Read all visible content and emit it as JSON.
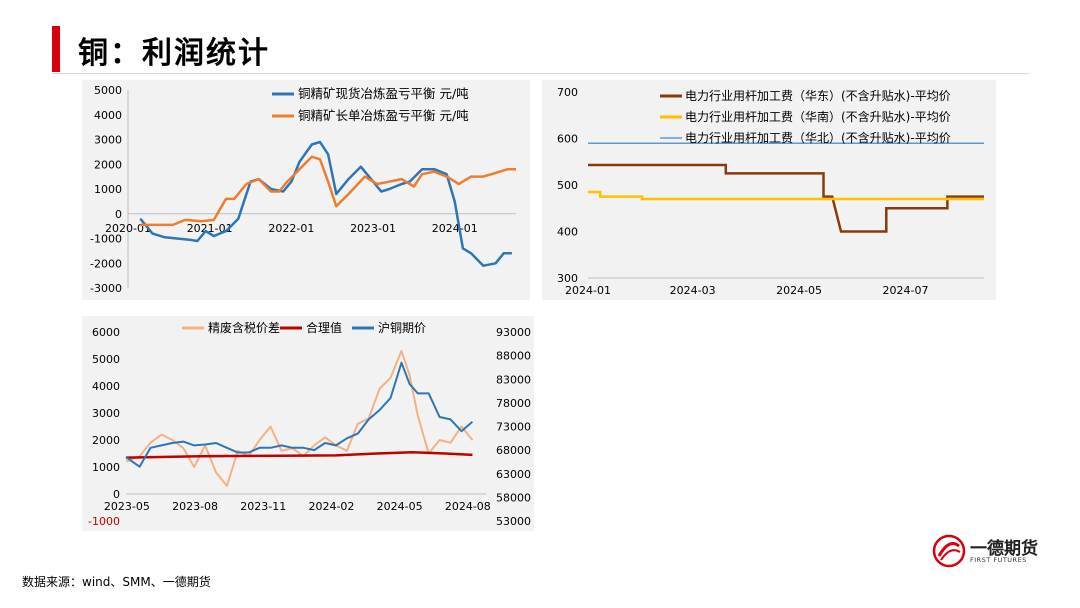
{
  "page": {
    "title": "铜：利润统计",
    "source": "数据来源：wind、SMM、一德期货"
  },
  "logo": {
    "name": "一德期货",
    "sub": "FIRST FUTURES"
  },
  "chart_data": [
    {
      "type": "line",
      "x_ticks": [
        "2020-01",
        "2021-01",
        "2022-01",
        "2023-01",
        "2024-01"
      ],
      "y_ticks": [
        -3000,
        -2000,
        -1000,
        0,
        1000,
        2000,
        3000,
        4000,
        5000
      ],
      "ylim": [
        -3000,
        5000
      ],
      "xlim": [
        2020.0,
        2024.75
      ],
      "series": [
        {
          "name": "铜精矿现货冶炼盈亏平衡 元/吨",
          "color": "#2e75b6",
          "x": [
            2020.15,
            2020.3,
            2020.45,
            2020.6,
            2020.75,
            2020.85,
            2020.95,
            2021.05,
            2021.2,
            2021.35,
            2021.5,
            2021.6,
            2021.75,
            2021.9,
            2022.0,
            2022.1,
            2022.25,
            2022.35,
            2022.45,
            2022.55,
            2022.7,
            2022.85,
            2023.0,
            2023.1,
            2023.2,
            2023.35,
            2023.45,
            2023.6,
            2023.75,
            2023.9,
            2024.0,
            2024.1,
            2024.2,
            2024.35,
            2024.5,
            2024.6,
            2024.7
          ],
          "y": [
            -200,
            -800,
            -950,
            -1000,
            -1050,
            -1100,
            -700,
            -900,
            -700,
            -200,
            1300,
            1400,
            1000,
            900,
            1300,
            2100,
            2800,
            2900,
            2400,
            800,
            1400,
            1900,
            1300,
            900,
            1000,
            1200,
            1300,
            1800,
            1800,
            1600,
            500,
            -1400,
            -1600,
            -2100,
            -2000,
            -1600,
            -1600
          ]
        },
        {
          "name": "铜精矿长单冶炼盈亏平衡 元/吨",
          "color": "#ed7d31",
          "x": [
            2020.15,
            2020.35,
            2020.55,
            2020.7,
            2020.9,
            2021.05,
            2021.2,
            2021.3,
            2021.45,
            2021.6,
            2021.75,
            2021.85,
            2021.95,
            2022.1,
            2022.25,
            2022.35,
            2022.45,
            2022.55,
            2022.7,
            2022.9,
            2023.05,
            2023.2,
            2023.35,
            2023.5,
            2023.6,
            2023.75,
            2023.9,
            2024.05,
            2024.2,
            2024.35,
            2024.5,
            2024.65,
            2024.75
          ],
          "y": [
            -450,
            -450,
            -450,
            -250,
            -300,
            -250,
            600,
            600,
            1200,
            1400,
            900,
            900,
            1300,
            1800,
            2300,
            2200,
            1300,
            300,
            800,
            1500,
            1200,
            1300,
            1400,
            1100,
            1600,
            1700,
            1500,
            1200,
            1500,
            1500,
            1650,
            1800,
            1800
          ]
        }
      ]
    },
    {
      "type": "line",
      "x_ticks": [
        "2024-01",
        "2024-03",
        "2024-05",
        "2024-07"
      ],
      "y_ticks": [
        300,
        400,
        500,
        600,
        700
      ],
      "ylim": [
        300,
        700
      ],
      "xlim": [
        "2024-01-01",
        "2024-08-15"
      ],
      "series": [
        {
          "name": "电力行业用杆加工费（华东）(不含升贴水)-平均价",
          "color": "#843c0c",
          "x": [
            "2024-01-01",
            "2024-03-20",
            "2024-03-20",
            "2024-05-15",
            "2024-05-15",
            "2024-05-20",
            "2024-05-25",
            "2024-05-26",
            "2024-06-20",
            "2024-06-20",
            "2024-07-25",
            "2024-07-25",
            "2024-08-15"
          ],
          "y": [
            543,
            543,
            525,
            525,
            475,
            475,
            400,
            400,
            400,
            450,
            450,
            475,
            475
          ]
        },
        {
          "name": "电力行业用杆加工费（华南）(不含升贴水)-平均价",
          "color": "#ffc000",
          "x": [
            "2024-01-01",
            "2024-01-08",
            "2024-01-08",
            "2024-02-01",
            "2024-02-01",
            "2024-08-15"
          ],
          "y": [
            485,
            485,
            475,
            475,
            470,
            470
          ]
        },
        {
          "name": "电力行业用杆加工费（华北）(不含升贴水)-平均价",
          "color": "#5b9bd5",
          "x": [
            "2024-01-01",
            "2024-08-15"
          ],
          "y": [
            590,
            590
          ]
        }
      ]
    },
    {
      "type": "line",
      "x_ticks": [
        "2023-05",
        "2023-08",
        "2023-11",
        "2024-02",
        "2024-05",
        "2024-08"
      ],
      "y_left_ticks": [
        -1000,
        0,
        1000,
        2000,
        3000,
        4000,
        5000,
        6000
      ],
      "y_right_ticks": [
        53000,
        58000,
        63000,
        68000,
        73000,
        78000,
        83000,
        88000,
        93000
      ],
      "ylim_left": [
        -1000,
        6000
      ],
      "ylim_right": [
        53000,
        93000
      ],
      "xlim": [
        2023.33,
        2024.65
      ],
      "series": [
        {
          "name": "精废含税价差",
          "color": "#f4b183",
          "axis": "left",
          "x": [
            2023.33,
            2023.38,
            2023.42,
            2023.46,
            2023.5,
            2023.54,
            2023.58,
            2023.62,
            2023.66,
            2023.7,
            2023.74,
            2023.78,
            2023.82,
            2023.86,
            2023.9,
            2023.94,
            2023.98,
            2024.02,
            2024.06,
            2024.1,
            2024.14,
            2024.18,
            2024.22,
            2024.26,
            2024.3,
            2024.34,
            2024.37,
            2024.4,
            2024.44,
            2024.48,
            2024.52,
            2024.56,
            2024.6
          ],
          "y": [
            1200,
            1400,
            1900,
            2200,
            2000,
            1700,
            1000,
            1800,
            800,
            300,
            1600,
            1400,
            2000,
            2500,
            1600,
            1700,
            1400,
            1800,
            2100,
            1800,
            1600,
            2600,
            2800,
            3900,
            4300,
            5300,
            4400,
            2900,
            1500,
            2000,
            1900,
            2500,
            2000
          ]
        },
        {
          "name": "合理值",
          "color": "#c00000",
          "axis": "left",
          "x": [
            2023.33,
            2023.6,
            2023.9,
            2024.1,
            2024.25,
            2024.38,
            2024.5,
            2024.6
          ],
          "y": [
            1350,
            1400,
            1420,
            1430,
            1500,
            1550,
            1500,
            1450
          ]
        },
        {
          "name": "沪铜期价",
          "color": "#2e75b6",
          "axis": "right",
          "x": [
            2023.33,
            2023.38,
            2023.42,
            2023.46,
            2023.5,
            2023.54,
            2023.58,
            2023.62,
            2023.66,
            2023.7,
            2023.74,
            2023.78,
            2023.82,
            2023.86,
            2023.9,
            2023.94,
            2023.98,
            2024.02,
            2024.06,
            2024.1,
            2024.14,
            2024.18,
            2024.22,
            2024.26,
            2024.3,
            2024.34,
            2024.37,
            2024.4,
            2024.44,
            2024.48,
            2024.52,
            2024.56,
            2024.6
          ],
          "y": [
            66500,
            64500,
            68500,
            69000,
            69500,
            69800,
            69000,
            69200,
            69500,
            68500,
            67500,
            67500,
            68500,
            68500,
            69000,
            68500,
            68500,
            68000,
            69500,
            69000,
            70500,
            71500,
            74500,
            76500,
            79000,
            86500,
            82000,
            80000,
            80000,
            75000,
            74500,
            72000,
            74000
          ]
        }
      ]
    }
  ]
}
